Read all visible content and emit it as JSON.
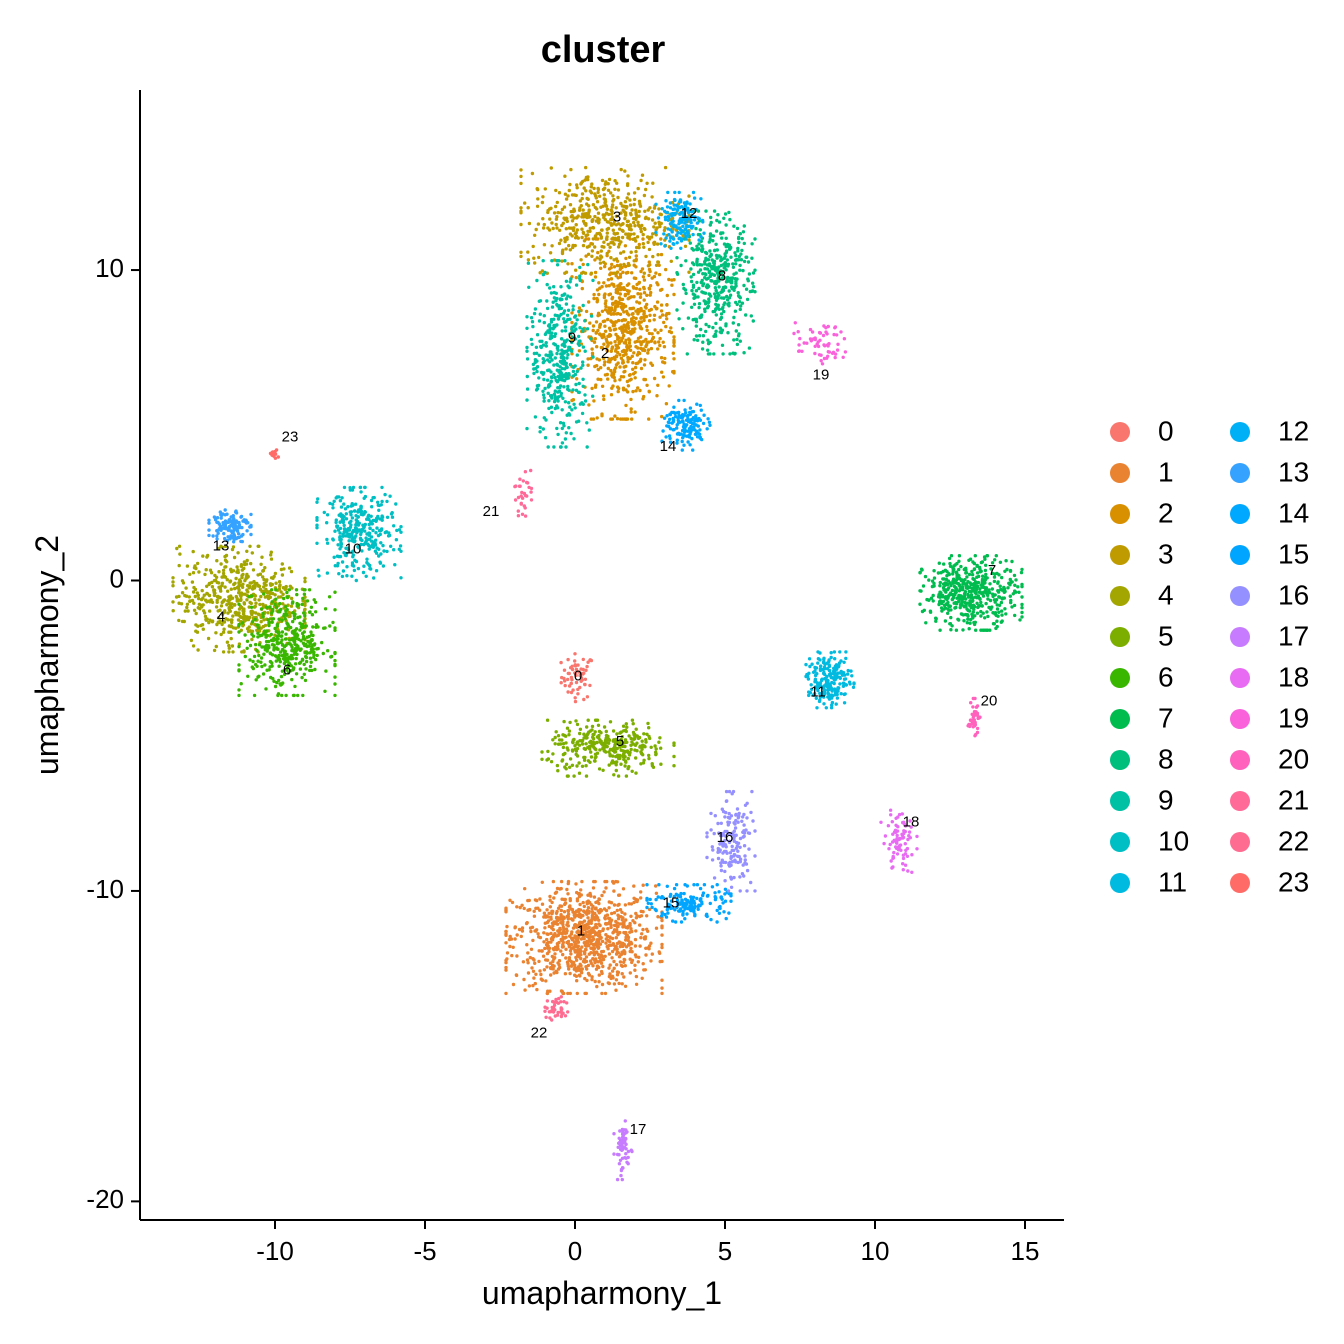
{
  "chart_data": {
    "type": "scatter",
    "title": "cluster",
    "xlabel": "umapharmony_1",
    "ylabel": "umapharmony_2",
    "xlim": [
      -14.5,
      16.3
    ],
    "ylim": [
      -20.6,
      15.8
    ],
    "x_ticks": [
      -10,
      -5,
      0,
      5,
      10,
      15
    ],
    "x_tick_labels": [
      "-10",
      "-5",
      "0",
      "5",
      "10",
      "15"
    ],
    "y_ticks": [
      -20,
      -10,
      0,
      10
    ],
    "y_tick_labels": [
      "-20",
      "-10",
      "0",
      "10"
    ],
    "grid": false,
    "legend_position": "right",
    "legend_columns": 2,
    "series": [
      {
        "name": "0",
        "color": "#F8766D",
        "centroid": [
          0.1,
          -3.1
        ],
        "spread": [
          1.2,
          1.6
        ],
        "n": 60,
        "label": {
          "text": "0",
          "x": 0.1,
          "y": -3.1
        }
      },
      {
        "name": "1",
        "color": "#EA8331",
        "centroid": [
          0.3,
          -11.5
        ],
        "spread": [
          5.2,
          3.6
        ],
        "n": 900,
        "label": {
          "text": "1",
          "x": 0.2,
          "y": -11.3
        }
      },
      {
        "name": "2",
        "color": "#D89000",
        "centroid": [
          1.6,
          8.1
        ],
        "spread": [
          3.4,
          5.8
        ],
        "n": 650,
        "label": {
          "text": "2",
          "x": 1.0,
          "y": 7.3
        }
      },
      {
        "name": "3",
        "color": "#C09B00",
        "centroid": [
          1.0,
          11.6
        ],
        "spread": [
          5.6,
          3.4
        ],
        "n": 500,
        "label": {
          "text": "3",
          "x": 1.4,
          "y": 11.7
        }
      },
      {
        "name": "4",
        "color": "#A3A500",
        "centroid": [
          -11.2,
          -0.6
        ],
        "spread": [
          4.4,
          3.4
        ],
        "n": 550,
        "label": {
          "text": "4",
          "x": -11.8,
          "y": -1.2
        }
      },
      {
        "name": "5",
        "color": "#7CAE00",
        "centroid": [
          1.1,
          -5.4
        ],
        "spread": [
          4.4,
          1.8
        ],
        "n": 320,
        "label": {
          "text": "5",
          "x": 1.5,
          "y": -5.2
        }
      },
      {
        "name": "6",
        "color": "#39B600",
        "centroid": [
          -9.6,
          -2.0
        ],
        "spread": [
          3.2,
          3.4
        ],
        "n": 420,
        "label": {
          "text": "6",
          "x": -9.6,
          "y": -2.9
        }
      },
      {
        "name": "7",
        "color": "#00BB4E",
        "centroid": [
          13.2,
          -0.4
        ],
        "spread": [
          3.4,
          2.4
        ],
        "n": 480,
        "label": {
          "text": "7",
          "x": 13.9,
          "y": 0.3
        }
      },
      {
        "name": "8",
        "color": "#00BF7D",
        "centroid": [
          4.7,
          9.6
        ],
        "spread": [
          2.6,
          4.6
        ],
        "n": 420,
        "label": {
          "text": "8",
          "x": 4.9,
          "y": 9.8
        }
      },
      {
        "name": "9",
        "color": "#00C1A3",
        "centroid": [
          -0.5,
          7.3
        ],
        "spread": [
          2.2,
          6.0
        ],
        "n": 400,
        "label": {
          "text": "9",
          "x": -0.1,
          "y": 7.8
        }
      },
      {
        "name": "10",
        "color": "#00BFC4",
        "centroid": [
          -7.2,
          1.5
        ],
        "spread": [
          2.8,
          3.0
        ],
        "n": 320,
        "label": {
          "text": "10",
          "x": -7.4,
          "y": 1.0
        }
      },
      {
        "name": "11",
        "color": "#00BAE0",
        "centroid": [
          8.5,
          -3.2
        ],
        "spread": [
          1.6,
          1.8
        ],
        "n": 200,
        "label": {
          "text": "11",
          "x": 8.1,
          "y": -3.6
        }
      },
      {
        "name": "12",
        "color": "#00B0F6",
        "centroid": [
          3.5,
          11.6
        ],
        "spread": [
          1.6,
          1.8
        ],
        "n": 150,
        "label": {
          "text": "12",
          "x": 3.8,
          "y": 11.8
        }
      },
      {
        "name": "13",
        "color": "#35A2FF",
        "centroid": [
          -11.5,
          1.8
        ],
        "spread": [
          1.4,
          1.2
        ],
        "n": 120,
        "label": {
          "text": "13",
          "x": -11.8,
          "y": 1.1
        }
      },
      {
        "name": "14",
        "color": "#00A9FF",
        "centroid": [
          3.7,
          5.0
        ],
        "spread": [
          1.6,
          1.6
        ],
        "n": 140,
        "label": {
          "text": "14",
          "x": 3.1,
          "y": 4.3
        }
      },
      {
        "name": "15",
        "color": "#00A5FF",
        "centroid": [
          3.8,
          -10.4
        ],
        "spread": [
          2.8,
          1.2
        ],
        "n": 160,
        "label": {
          "text": "15",
          "x": 3.2,
          "y": -10.4
        }
      },
      {
        "name": "16",
        "color": "#9590FF",
        "centroid": [
          5.2,
          -8.4
        ],
        "spread": [
          1.6,
          3.2
        ],
        "n": 160,
        "label": {
          "text": "16",
          "x": 5.0,
          "y": -8.3
        }
      },
      {
        "name": "17",
        "color": "#C77CFF",
        "centroid": [
          1.6,
          -18.3
        ],
        "spread": [
          0.6,
          2.0
        ],
        "n": 60,
        "label": {
          "text": "17",
          "x": 2.1,
          "y": -17.7
        }
      },
      {
        "name": "18",
        "color": "#E76BF3",
        "centroid": [
          10.8,
          -8.4
        ],
        "spread": [
          1.2,
          2.0
        ],
        "n": 80,
        "label": {
          "text": "18",
          "x": 11.2,
          "y": -7.8
        }
      },
      {
        "name": "19",
        "color": "#FA62DB",
        "centroid": [
          8.2,
          7.6
        ],
        "spread": [
          1.8,
          1.4
        ],
        "n": 60,
        "label": {
          "text": "19",
          "x": 8.2,
          "y": 6.6
        }
      },
      {
        "name": "20",
        "color": "#FF62BC",
        "centroid": [
          13.3,
          -4.4
        ],
        "spread": [
          0.4,
          1.2
        ],
        "n": 40,
        "label": {
          "text": "20",
          "x": 13.8,
          "y": -3.9
        }
      },
      {
        "name": "21",
        "color": "#FF6A98",
        "centroid": [
          -1.8,
          2.8
        ],
        "spread": [
          0.7,
          1.5
        ],
        "n": 30,
        "label": {
          "text": "21",
          "x": -2.8,
          "y": 2.2
        }
      },
      {
        "name": "22",
        "color": "#FF6C91",
        "centroid": [
          -0.6,
          -13.8
        ],
        "spread": [
          0.8,
          1.0
        ],
        "n": 40,
        "label": {
          "text": "22",
          "x": -1.2,
          "y": -14.6
        }
      },
      {
        "name": "23",
        "color": "#FF6C67",
        "centroid": [
          -10.0,
          4.1
        ],
        "spread": [
          0.3,
          0.4
        ],
        "n": 12,
        "label": {
          "text": "23",
          "x": -9.5,
          "y": 4.6
        }
      }
    ]
  }
}
